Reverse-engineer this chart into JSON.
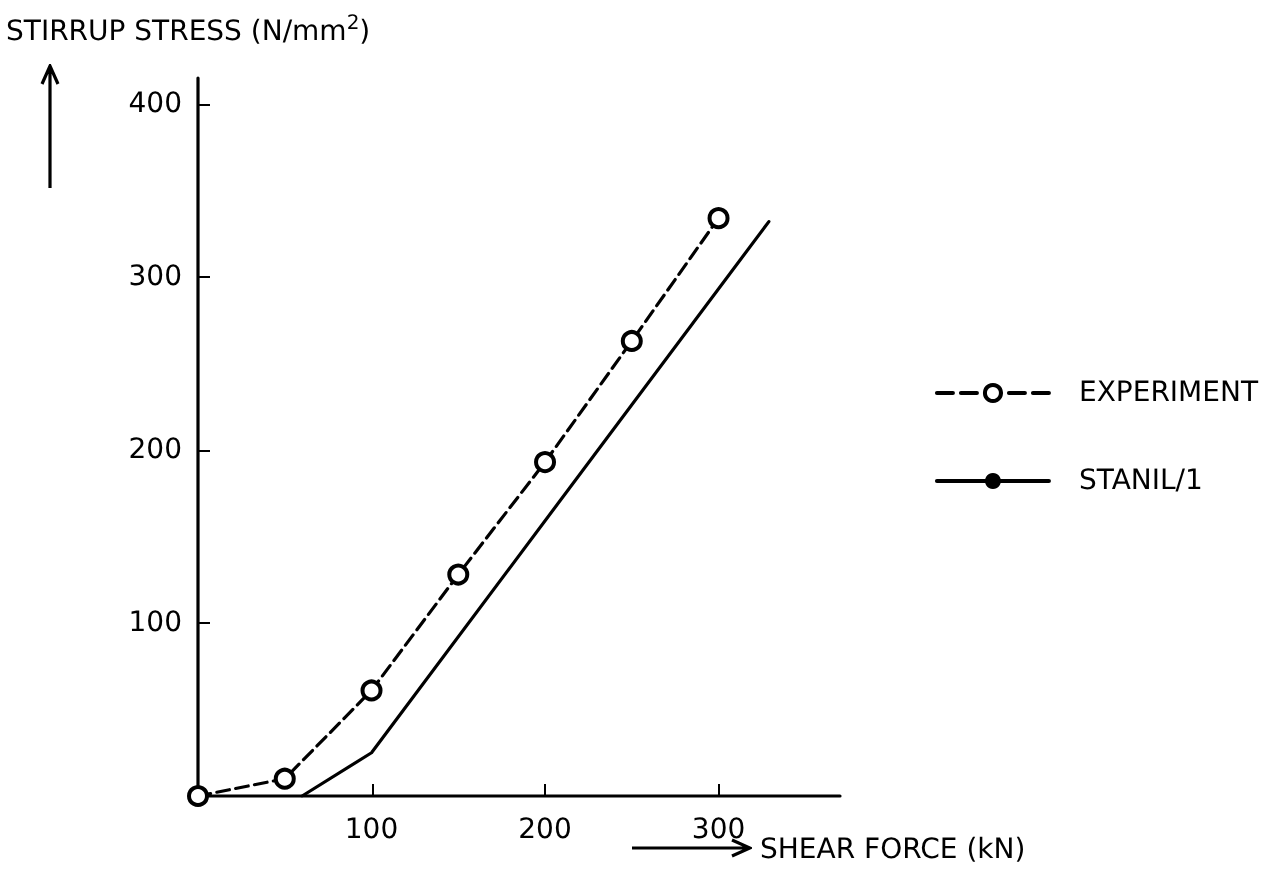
{
  "chart_data": {
    "type": "line",
    "xlabel": "SHEAR FORCE (kN)",
    "ylabel": "STIRRUP STRESS (N/mm$^{2}$)",
    "xlim": [
      0,
      370
    ],
    "ylim": [
      0,
      415
    ],
    "xticks": [
      100,
      200,
      300
    ],
    "yticks": [
      100,
      200,
      300,
      400
    ],
    "grid": false,
    "legend": "right",
    "series": [
      {
        "name": "EXPERIMENT",
        "color": "#000000",
        "x": [
          0,
          50,
          100,
          150,
          200,
          250,
          300
        ],
        "values": [
          0,
          10,
          61,
          128,
          193,
          263,
          334
        ],
        "marker": "circle",
        "line_style": "dashed"
      },
      {
        "name": "STANIL/1",
        "color": "#000000",
        "x": [
          60,
          100,
          329
        ],
        "values": [
          0,
          25,
          332
        ],
        "marker": "none",
        "line_style": "solid"
      }
    ]
  }
}
